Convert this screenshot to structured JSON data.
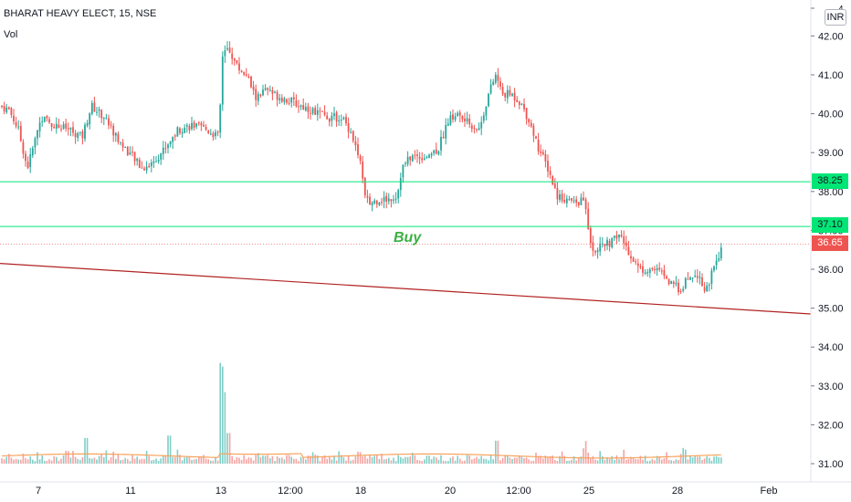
{
  "header": {
    "symbol": "BHARAT HEAVY ELECT, 15, NSE",
    "volume_label": "Vol",
    "currency": "INR",
    "annotation": "Buy"
  },
  "price_tags": {
    "level_a": "38.25",
    "level_b": "37.10",
    "last": "36.65"
  },
  "colors": {
    "up": "#26a69a",
    "down": "#ef5350",
    "horizontal_line": "#00e676",
    "trendline": "#b22222",
    "volume_ma": "#f7a35c"
  },
  "chart_data": {
    "type": "candlestick",
    "symbol": "BHARAT HEAVY ELECT",
    "interval": "15",
    "exchange": "NSE",
    "y_axis": {
      "ticks": [
        "31.00",
        "32.00",
        "33.00",
        "34.00",
        "35.00",
        "36.00",
        "37.00",
        "38.00",
        "39.00",
        "40.00",
        "41.00",
        "42.00"
      ],
      "range": [
        30.8,
        42.4
      ],
      "currency": "INR"
    },
    "x_axis": {
      "ticks": [
        "7",
        "11",
        "13",
        "12:00",
        "18",
        "20",
        "12:00",
        "25",
        "28",
        "Feb"
      ]
    },
    "horizontal_levels": [
      38.25,
      37.1
    ],
    "last_price": 36.65,
    "trendline": {
      "start": 36.15,
      "end": 34.85
    },
    "annotation": {
      "text": "Buy",
      "price": 36.75
    },
    "close_anchors": [
      [
        0,
        40.2
      ],
      [
        10,
        40.1
      ],
      [
        20,
        39.6
      ],
      [
        30,
        38.6
      ],
      [
        45,
        39.9
      ],
      [
        60,
        39.7
      ],
      [
        75,
        39.6
      ],
      [
        90,
        39.4
      ],
      [
        100,
        40.2
      ],
      [
        115,
        39.9
      ],
      [
        130,
        39.3
      ],
      [
        145,
        38.9
      ],
      [
        155,
        38.6
      ],
      [
        165,
        38.7
      ],
      [
        180,
        39.1
      ],
      [
        195,
        39.6
      ],
      [
        210,
        39.7
      ],
      [
        225,
        39.6
      ],
      [
        240,
        39.4
      ],
      [
        243,
        41.4
      ],
      [
        250,
        41.7
      ],
      [
        260,
        41.2
      ],
      [
        270,
        41.0
      ],
      [
        280,
        40.4
      ],
      [
        290,
        40.6
      ],
      [
        300,
        40.5
      ],
      [
        320,
        40.3
      ],
      [
        340,
        40.1
      ],
      [
        360,
        39.9
      ],
      [
        375,
        39.9
      ],
      [
        385,
        39.5
      ],
      [
        395,
        38.7
      ],
      [
        400,
        37.8
      ],
      [
        405,
        37.7
      ],
      [
        415,
        37.8
      ],
      [
        425,
        37.8
      ],
      [
        435,
        37.9
      ],
      [
        440,
        38.6
      ],
      [
        450,
        38.9
      ],
      [
        465,
        38.9
      ],
      [
        480,
        39.1
      ],
      [
        490,
        39.8
      ],
      [
        500,
        40.0
      ],
      [
        510,
        39.8
      ],
      [
        525,
        39.6
      ],
      [
        535,
        40.5
      ],
      [
        543,
        41.0
      ],
      [
        550,
        40.5
      ],
      [
        560,
        40.5
      ],
      [
        570,
        40.3
      ],
      [
        580,
        39.8
      ],
      [
        590,
        39.1
      ],
      [
        600,
        38.6
      ],
      [
        610,
        37.9
      ],
      [
        620,
        37.8
      ],
      [
        630,
        37.7
      ],
      [
        640,
        37.8
      ],
      [
        645,
        36.9
      ],
      [
        650,
        36.5
      ],
      [
        660,
        36.6
      ],
      [
        670,
        36.7
      ],
      [
        678,
        36.9
      ],
      [
        690,
        36.4
      ],
      [
        700,
        36.0
      ],
      [
        715,
        36.0
      ],
      [
        725,
        35.9
      ],
      [
        735,
        35.6
      ],
      [
        745,
        35.5
      ],
      [
        755,
        35.8
      ],
      [
        765,
        35.9
      ],
      [
        772,
        35.4
      ],
      [
        780,
        35.9
      ],
      [
        787,
        36.3
      ],
      [
        792,
        36.65
      ]
    ],
    "volume_spikes": [
      [
        243,
        3.8
      ],
      [
        248,
        2.8
      ],
      [
        250,
        1.2
      ],
      [
        545,
        0.9
      ],
      [
        185,
        1.1
      ],
      [
        95,
        1.0
      ],
      [
        640,
        0.6
      ],
      [
        750,
        0.55
      ]
    ]
  }
}
